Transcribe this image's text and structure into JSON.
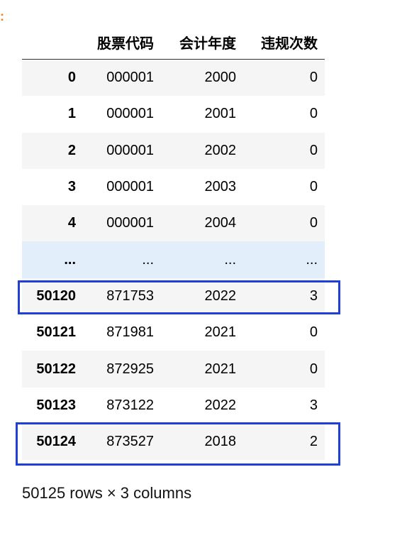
{
  "marker": ":",
  "columns": {
    "index": "",
    "code": "股票代码",
    "year": "会计年度",
    "count": "违规次数"
  },
  "rows": [
    {
      "idx": "0",
      "code": "000001",
      "year": "2000",
      "count": "0"
    },
    {
      "idx": "1",
      "code": "000001",
      "year": "2001",
      "count": "0"
    },
    {
      "idx": "2",
      "code": "000001",
      "year": "2002",
      "count": "0"
    },
    {
      "idx": "3",
      "code": "000001",
      "year": "2003",
      "count": "0"
    },
    {
      "idx": "4",
      "code": "000001",
      "year": "2004",
      "count": "0"
    },
    {
      "idx": "...",
      "code": "...",
      "year": "...",
      "count": "..."
    },
    {
      "idx": "50120",
      "code": "871753",
      "year": "2022",
      "count": "3"
    },
    {
      "idx": "50121",
      "code": "871981",
      "year": "2021",
      "count": "0"
    },
    {
      "idx": "50122",
      "code": "872925",
      "year": "2021",
      "count": "0"
    },
    {
      "idx": "50123",
      "code": "873122",
      "year": "2022",
      "count": "3"
    },
    {
      "idx": "50124",
      "code": "873527",
      "year": "2018",
      "count": "2"
    }
  ],
  "summary": "50125 rows × 3 columns",
  "colors": {
    "highlight": "#1f3fd6",
    "ellipsis_row": "#e3eefb",
    "stripe": "#f5f5f5",
    "marker": "#e8832a"
  }
}
